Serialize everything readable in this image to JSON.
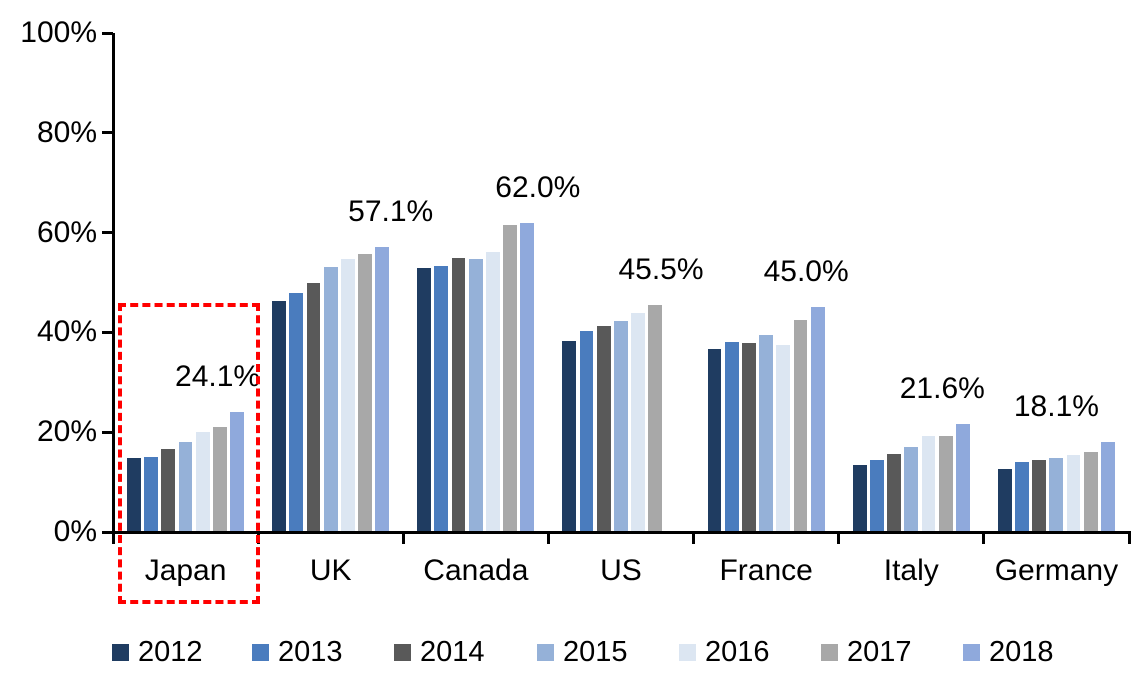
{
  "chart_data": {
    "type": "bar",
    "title": "",
    "xlabel": "",
    "ylabel": "",
    "ylim": [
      0,
      100
    ],
    "grid": false,
    "legend_position": "bottom",
    "ytick_labels": [
      "0%",
      "20%",
      "40%",
      "60%",
      "80%",
      "100%"
    ],
    "categories": [
      "Japan",
      "UK",
      "Canada",
      "US",
      "France",
      "Italy",
      "Germany"
    ],
    "series": [
      {
        "name": "2012",
        "color": "#1F3C61",
        "values": [
          14.8,
          46.3,
          53.0,
          38.3,
          36.6,
          13.5,
          12.7
        ]
      },
      {
        "name": "2013",
        "color": "#4A7CBE",
        "values": [
          15.0,
          47.8,
          53.4,
          40.2,
          38.0,
          14.4,
          14.1
        ]
      },
      {
        "name": "2014",
        "color": "#595959",
        "values": [
          16.6,
          49.8,
          54.9,
          41.2,
          37.9,
          15.6,
          14.5
        ]
      },
      {
        "name": "2015",
        "color": "#95B1D8",
        "values": [
          18.1,
          53.2,
          54.7,
          42.3,
          39.4,
          17.0,
          14.9
        ]
      },
      {
        "name": "2016",
        "color": "#DCE6F2",
        "values": [
          20.0,
          54.7,
          56.2,
          43.8,
          37.5,
          19.2,
          15.5
        ]
      },
      {
        "name": "2017",
        "color": "#A8A8A8",
        "values": [
          21.0,
          55.7,
          61.5,
          45.5,
          42.4,
          19.3,
          16.0
        ]
      },
      {
        "name": "2018",
        "color": "#8FA9DC",
        "values": [
          24.1,
          57.1,
          62.0,
          null,
          45.0,
          21.6,
          18.1
        ]
      }
    ],
    "annotations": [
      "24.1%",
      "57.1%",
      "62.0%",
      "45.5%",
      "45.0%",
      "21.6%",
      "18.1%"
    ],
    "highlight": {
      "category": "Japan",
      "color": "#FF0000",
      "style": "dashed-rectangle"
    }
  }
}
